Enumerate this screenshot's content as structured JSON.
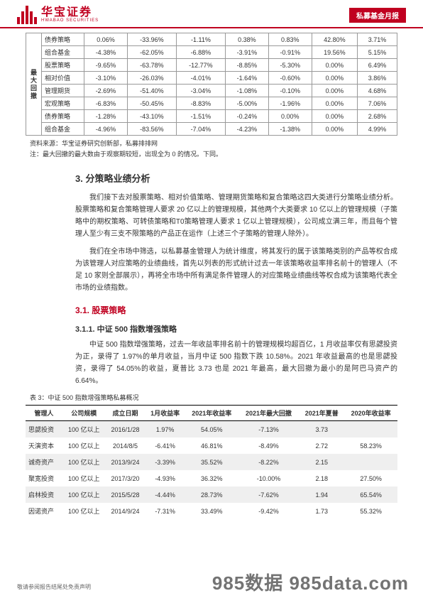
{
  "header": {
    "logo_cn": "华宝证券",
    "logo_en": "HWABAO SECURITIES",
    "badge": "私募基金月报"
  },
  "top_table": {
    "vhead": "最大回撤",
    "rows": [
      {
        "label": "债券策略",
        "c": [
          "0.06%",
          "-33.96%",
          "-1.11%",
          "0.38%",
          "0.83%",
          "42.80%",
          "3.71%"
        ]
      },
      {
        "label": "组合基金",
        "c": [
          "-4.38%",
          "-62.05%",
          "-6.88%",
          "-3.91%",
          "-0.91%",
          "19.56%",
          "5.15%"
        ]
      },
      {
        "label": "股票策略",
        "c": [
          "-9.65%",
          "-63.78%",
          "-12.77%",
          "-8.85%",
          "-5.30%",
          "0.00%",
          "6.49%"
        ]
      },
      {
        "label": "相对价值",
        "c": [
          "-3.10%",
          "-26.03%",
          "-4.01%",
          "-1.64%",
          "-0.60%",
          "0.00%",
          "3.86%"
        ]
      },
      {
        "label": "管理期货",
        "c": [
          "-2.69%",
          "-51.40%",
          "-3.04%",
          "-1.08%",
          "-0.10%",
          "0.00%",
          "4.68%"
        ]
      },
      {
        "label": "宏观策略",
        "c": [
          "-6.83%",
          "-50.45%",
          "-8.83%",
          "-5.00%",
          "-1.96%",
          "0.00%",
          "7.06%"
        ]
      },
      {
        "label": "债券策略",
        "c": [
          "-1.28%",
          "-43.10%",
          "-1.51%",
          "-0.24%",
          "0.00%",
          "0.00%",
          "2.68%"
        ]
      },
      {
        "label": "组合基金",
        "c": [
          "-4.96%",
          "-83.56%",
          "-7.04%",
          "-4.23%",
          "-1.38%",
          "0.00%",
          "4.99%"
        ]
      }
    ],
    "source": "资料来源：华宝证券研究创新部，私募排排网",
    "note": "注：最大回撤的最大数由于观察期较短，出现全为 0 的情况。下同。"
  },
  "sec3": {
    "title": "3. 分策略业绩分析",
    "p1": "我们接下去对股票策略、相对价值策略、管理期货策略和复合策略这四大类进行分策略业绩分析。股票策略和复合策略管理人要求 20 亿以上的管理规模，其他两个大类要求 10 亿以上的管理规模（子策略中的期权策略、可转债策略和T0策略管理人要求 1 亿以上管理规模），公司成立满三年，而且每个管理人至少有三支不限策略的产品正在运作（上述三个子策略的管理人除外）。",
    "p2": "我们在全市场中筛选，以私募基金管理人为统计维度，将其发行的属于该策略类别的产品等权合成为该管理人对应策略的业绩曲线，首先以列表的形式统计过去一年该策略收益率排名前十的管理人（不足 10 家则全部展示），再将全市场中所有满足条件管理人的对应策略业绩曲线等权合成为该策略代表全市场的业绩指数。"
  },
  "sec31": {
    "title": "3.1. 股票策略",
    "sub311": "3.1.1. 中证 500 指数增强策略",
    "p": "中证 500 指数增强策略，过去一年收益率排名前十的管理规模均超百亿，1 月收益率仅有思勰投资为正，录得了 1.97%的单月收益，当月中证 500 指数下跌 10.58%。2021 年收益最高的也是思勰投资，录得了 54.05%的收益，夏普比 3.73 也是 2021 年最高，最大回撤为最小的是阿巴马资产的 6.64%。"
  },
  "bot_table": {
    "title": "表 3：中证 500 指数增强策略私募概况",
    "headers": [
      "管理人",
      "公司规模",
      "成立日期",
      "1月收益率",
      "2021年收益率",
      "2021年最大回撤",
      "2021年夏普",
      "2020年收益率"
    ],
    "rows": [
      {
        "cells": [
          "思勰投资",
          "100 亿以上",
          "2016/1/28",
          "1.97%",
          "54.05%",
          "-7.13%",
          "3.73",
          ""
        ]
      },
      {
        "cells": [
          "天演资本",
          "100 亿以上",
          "2014/8/5",
          "-6.41%",
          "46.81%",
          "-8.49%",
          "2.72",
          "58.23%"
        ]
      },
      {
        "cells": [
          "诚奇资产",
          "100 亿以上",
          "2013/9/24",
          "-3.39%",
          "35.52%",
          "-8.22%",
          "2.15",
          ""
        ]
      },
      {
        "cells": [
          "聚宽投资",
          "100 亿以上",
          "2017/3/20",
          "-4.93%",
          "36.32%",
          "-10.00%",
          "2.18",
          "27.50%"
        ]
      },
      {
        "cells": [
          "启林投资",
          "100 亿以上",
          "2015/5/28",
          "-4.44%",
          "28.73%",
          "-7.62%",
          "1.94",
          "65.54%"
        ]
      },
      {
        "cells": [
          "因诺资产",
          "100 亿以上",
          "2014/9/24",
          "-7.31%",
          "33.49%",
          "-9.42%",
          "1.73",
          "55.32%"
        ]
      }
    ]
  },
  "footer": {
    "disclaimer": "敬请参阅报告结尾处免责声明",
    "watermark": "985数据 985data.com"
  }
}
